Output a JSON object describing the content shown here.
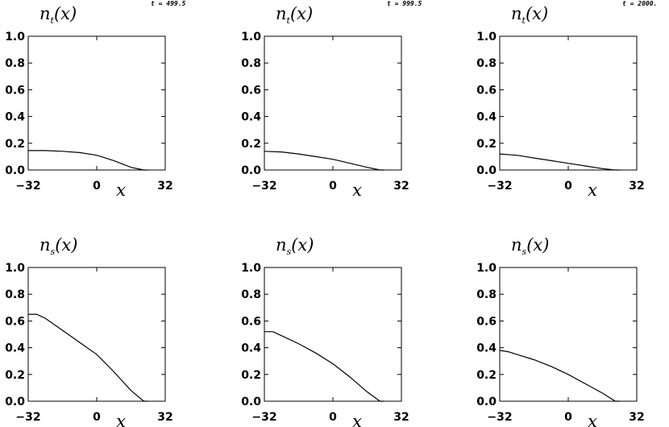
{
  "chart_data": [
    {
      "type": "line",
      "ylabel_base": "n",
      "ylabel_sub": "t",
      "ylabel_tail": "(x)",
      "xlabel": "x",
      "time_label": "t = 499.5",
      "xlim": [
        -32,
        32
      ],
      "ylim": [
        0,
        1
      ],
      "xticks": [
        -32,
        0,
        32
      ],
      "yticks": [
        "0.0",
        "0.2",
        "0.4",
        "0.6",
        "0.8",
        "1.0"
      ],
      "series": [
        {
          "x": [
            -32,
            -24,
            -16,
            -8,
            0,
            8,
            16,
            22,
            24
          ],
          "y": [
            0.145,
            0.145,
            0.14,
            0.13,
            0.11,
            0.07,
            0.02,
            0.0,
            0.0
          ]
        }
      ]
    },
    {
      "type": "line",
      "ylabel_base": "n",
      "ylabel_sub": "t",
      "ylabel_tail": "(x)",
      "xlabel": "x",
      "time_label": "t = 999.5",
      "xlim": [
        -32,
        32
      ],
      "ylim": [
        0,
        1
      ],
      "xticks": [
        -32,
        0,
        32
      ],
      "yticks": [
        "0.0",
        "0.2",
        "0.4",
        "0.6",
        "0.8",
        "1.0"
      ],
      "series": [
        {
          "x": [
            -32,
            -24,
            -16,
            -8,
            0,
            8,
            16,
            22,
            24
          ],
          "y": [
            0.14,
            0.135,
            0.12,
            0.1,
            0.08,
            0.05,
            0.02,
            0.0,
            0.0
          ]
        }
      ]
    },
    {
      "type": "line",
      "ylabel_base": "n",
      "ylabel_sub": "t",
      "ylabel_tail": "(x)",
      "xlabel": "x",
      "time_label": "t = 2000.",
      "xlim": [
        -32,
        32
      ],
      "ylim": [
        0,
        1
      ],
      "xticks": [
        -32,
        0,
        32
      ],
      "yticks": [
        "0.0",
        "0.2",
        "0.4",
        "0.6",
        "0.8",
        "1.0"
      ],
      "series": [
        {
          "x": [
            -32,
            -24,
            -16,
            -8,
            0,
            8,
            16,
            22,
            24
          ],
          "y": [
            0.12,
            0.11,
            0.09,
            0.07,
            0.05,
            0.03,
            0.01,
            0.0,
            0.0
          ]
        }
      ]
    },
    {
      "type": "line",
      "ylabel_base": "n",
      "ylabel_sub": "s",
      "ylabel_tail": "(x)",
      "xlabel": "x",
      "time_label": "",
      "xlim": [
        -32,
        32
      ],
      "ylim": [
        0,
        1
      ],
      "xticks": [
        -32,
        0,
        32
      ],
      "yticks": [
        "0.0",
        "0.2",
        "0.4",
        "0.6",
        "0.8",
        "1.0"
      ],
      "series": [
        {
          "x": [
            -32,
            -28,
            -24,
            -16,
            -8,
            0,
            8,
            16,
            22,
            24
          ],
          "y": [
            0.65,
            0.65,
            0.62,
            0.53,
            0.44,
            0.35,
            0.22,
            0.08,
            0.0,
            0.0
          ]
        }
      ]
    },
    {
      "type": "line",
      "ylabel_base": "n",
      "ylabel_sub": "s",
      "ylabel_tail": "(x)",
      "xlabel": "x",
      "time_label": "",
      "xlim": [
        -32,
        32
      ],
      "ylim": [
        0,
        1
      ],
      "xticks": [
        -32,
        0,
        32
      ],
      "yticks": [
        "0.0",
        "0.2",
        "0.4",
        "0.6",
        "0.8",
        "1.0"
      ],
      "series": [
        {
          "x": [
            -32,
            -28,
            -24,
            -16,
            -8,
            0,
            8,
            16,
            22,
            24
          ],
          "y": [
            0.52,
            0.52,
            0.49,
            0.43,
            0.36,
            0.28,
            0.18,
            0.07,
            0.0,
            0.0
          ]
        }
      ]
    },
    {
      "type": "line",
      "ylabel_base": "n",
      "ylabel_sub": "s",
      "ylabel_tail": "(x)",
      "xlabel": "x",
      "time_label": "",
      "xlim": [
        -32,
        32
      ],
      "ylim": [
        0,
        1
      ],
      "xticks": [
        -32,
        0,
        32
      ],
      "yticks": [
        "0.0",
        "0.2",
        "0.4",
        "0.6",
        "0.8",
        "1.0"
      ],
      "series": [
        {
          "x": [
            -32,
            -28,
            -24,
            -16,
            -8,
            0,
            8,
            16,
            22,
            24
          ],
          "y": [
            0.38,
            0.37,
            0.35,
            0.31,
            0.26,
            0.2,
            0.13,
            0.06,
            0.0,
            0.0
          ]
        }
      ]
    }
  ]
}
